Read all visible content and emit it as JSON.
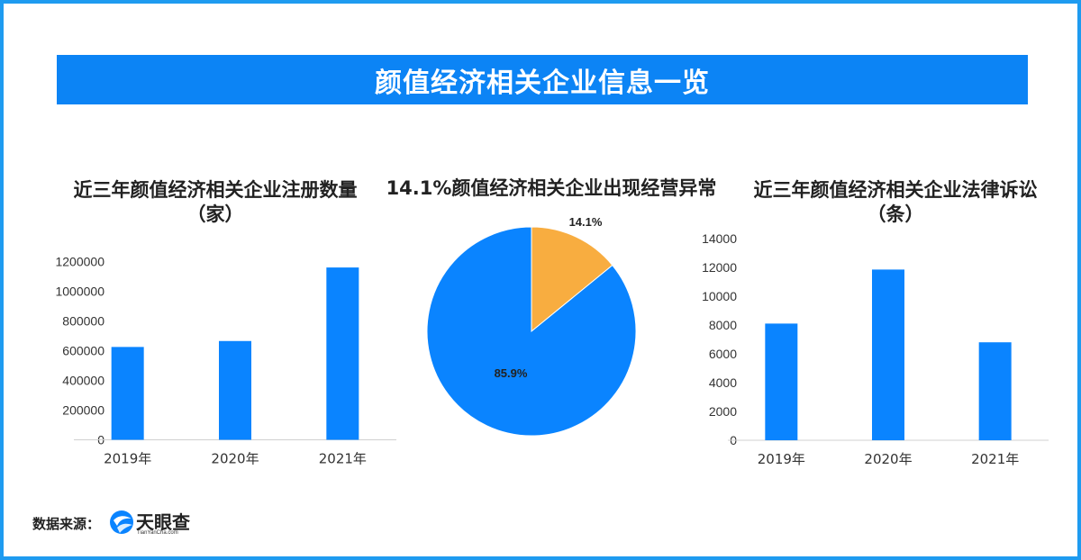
{
  "banner_title": "颜值经济相关企业信息一览",
  "source": {
    "label": "数据来源：",
    "logo_text": "天眼查",
    "logo_sub": "TianYanCha.com"
  },
  "colors": {
    "frame": "#1e9bf0",
    "banner": "#0c84f5",
    "bar": "#0a84ff",
    "pie_main": "#0a84ff",
    "pie_accent": "#f8ad40"
  },
  "chart_data": [
    {
      "type": "bar",
      "title": "近三年颜值经济相关企业注册数量（家）",
      "title_lines": [
        "近三年颜值经济相关企业注册数量",
        "（家）"
      ],
      "categories": [
        "2019年",
        "2020年",
        "2021年"
      ],
      "values": [
        625000,
        665000,
        1160000
      ],
      "yticks": [
        "0",
        "200000",
        "400000",
        "600000",
        "800000",
        "1000000",
        "1200000"
      ],
      "ylim": [
        0,
        1200000
      ],
      "grid": false
    },
    {
      "type": "pie",
      "title": "14.1%颜值经济相关企业出现经营异常",
      "slices": [
        {
          "value": 14.1,
          "label": "14.1%"
        },
        {
          "value": 85.9,
          "label": "85.9%"
        }
      ]
    },
    {
      "type": "bar",
      "title": "近三年颜值经济相关企业法律诉讼（条）",
      "title_lines": [
        "近三年颜值经济相关企业法律诉讼",
        "（条）"
      ],
      "categories": [
        "2019年",
        "2020年",
        "2021年"
      ],
      "values": [
        8100,
        11850,
        6800
      ],
      "yticks": [
        "0",
        "2000",
        "4000",
        "6000",
        "8000",
        "10000",
        "12000",
        "14000"
      ],
      "ylim": [
        0,
        14000
      ],
      "grid": false
    }
  ]
}
